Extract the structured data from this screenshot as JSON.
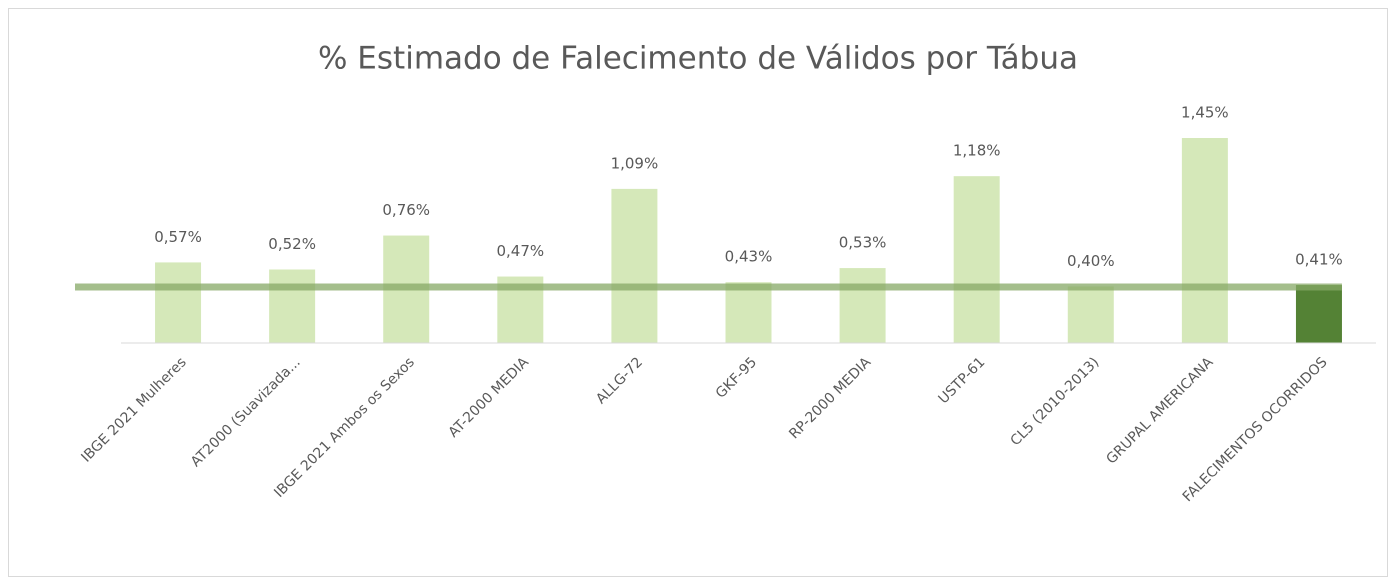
{
  "chart_data": {
    "type": "bar",
    "title": "% Estimado de Falecimento de Válidos por Tábua",
    "categories": [
      "IBGE 2021  Mulheres",
      "AT2000 (Suavizada...",
      "IBGE 2021  Ambos os Sexos",
      "AT-2000 MEDIA",
      "ALLG-72",
      "GKF-95",
      "RP-2000 MEDIA",
      "USTP-61",
      "CL5 (2010-2013)",
      "GRUPAL AMERICANA",
      "FALECIMENTOS OCORRIDOS"
    ],
    "values": [
      0.57,
      0.52,
      0.76,
      0.47,
      1.09,
      0.43,
      0.53,
      1.18,
      0.4,
      1.45,
      0.41
    ],
    "value_labels": [
      "0,57%",
      "0,52%",
      "0,76%",
      "0,47%",
      "1,09%",
      "0,43%",
      "0,53%",
      "1,18%",
      "0,40%",
      "1,45%",
      "0,41%"
    ],
    "colors": [
      "#d5e8b9",
      "#d5e8b9",
      "#d5e8b9",
      "#d5e8b9",
      "#d5e8b9",
      "#d5e8b9",
      "#d5e8b9",
      "#d5e8b9",
      "#d5e8b9",
      "#d5e8b9",
      "#548235"
    ],
    "reference_color": "#86a866"
  }
}
